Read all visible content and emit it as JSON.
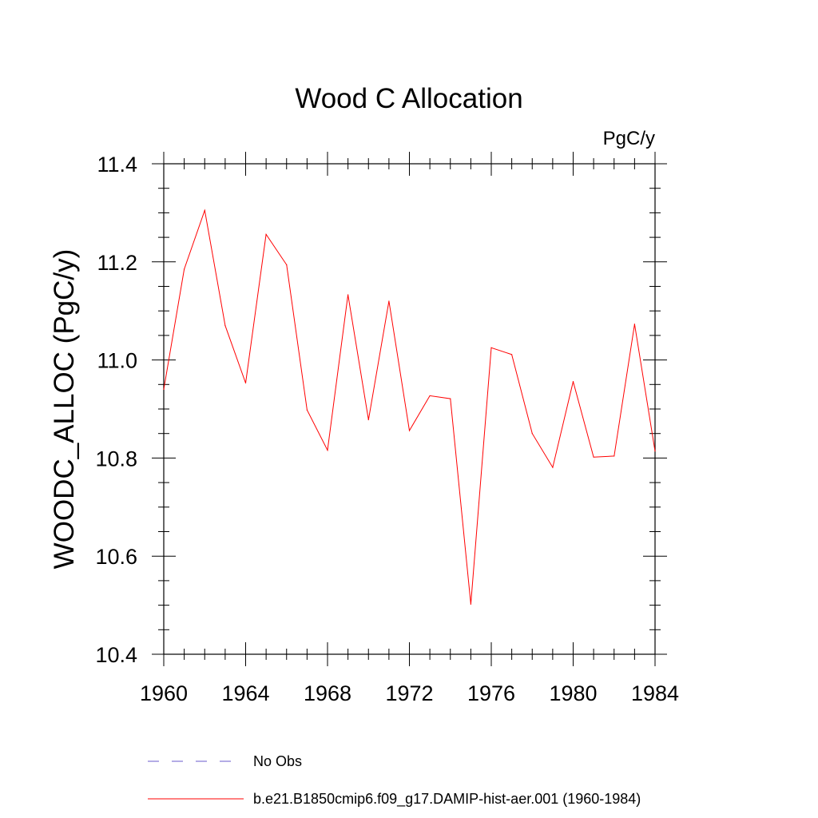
{
  "chart_data": {
    "type": "line",
    "title": "Wood C Allocation",
    "units": "PgC/y",
    "xlabel": "",
    "ylabel": "WOODC_ALLOC  (PgC/y)",
    "xlim": [
      1960,
      1984
    ],
    "ylim": [
      10.4,
      11.4
    ],
    "x_ticks": [
      1960,
      1964,
      1968,
      1972,
      1976,
      1980,
      1984
    ],
    "y_ticks": [
      10.4,
      10.6,
      10.8,
      11.0,
      11.2,
      11.4
    ],
    "x_tick_labels": [
      "1960",
      "1964",
      "1968",
      "1972",
      "1976",
      "1980",
      "1984"
    ],
    "y_tick_labels": [
      "10.4",
      "10.6",
      "10.8",
      "11.0",
      "11.2",
      "11.4"
    ],
    "x": [
      1960,
      1961,
      1962,
      1963,
      1964,
      1965,
      1966,
      1967,
      1968,
      1969,
      1970,
      1971,
      1972,
      1973,
      1974,
      1975,
      1976,
      1977,
      1978,
      1979,
      1980,
      1981,
      1982,
      1983,
      1984
    ],
    "series": [
      {
        "name": "b.e21.B1850cmip6.f09_g17.DAMIP-hist-aer.001 (1960-1984)",
        "color": "#ff0000",
        "style": "solid",
        "values": [
          10.94,
          11.185,
          11.305,
          11.07,
          10.953,
          11.256,
          11.194,
          10.898,
          10.816,
          11.133,
          10.878,
          11.12,
          10.856,
          10.927,
          10.921,
          10.502,
          11.025,
          11.011,
          10.85,
          10.781,
          10.956,
          10.802,
          10.804,
          11.073,
          10.814
        ]
      }
    ],
    "legend": {
      "placement": "bottom",
      "entries": [
        {
          "label": "No Obs",
          "color": "#6a5acd",
          "style": "dashed"
        },
        {
          "label": "b.e21.B1850cmip6.f09_g17.DAMIP-hist-aer.001 (1960-1984)",
          "color": "#ff0000",
          "style": "solid"
        }
      ]
    }
  }
}
